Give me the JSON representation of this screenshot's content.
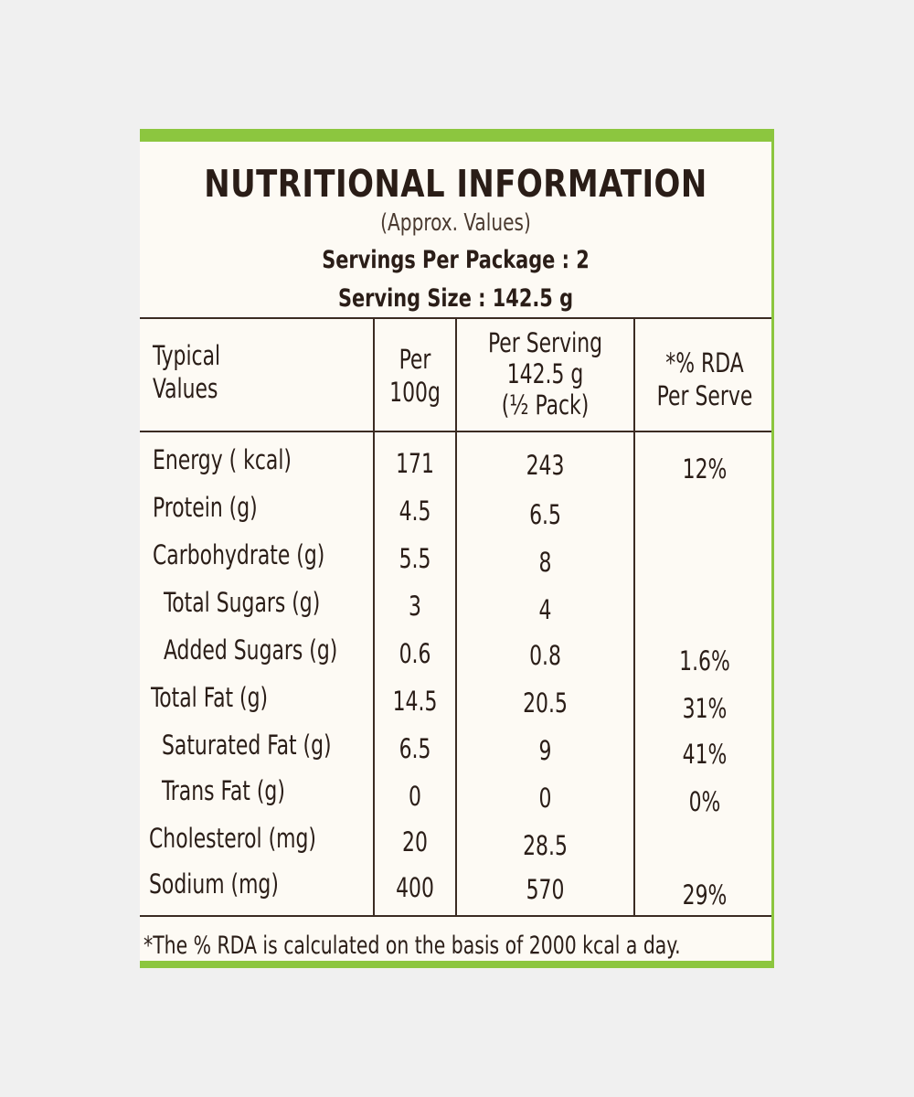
{
  "label": {
    "title": "NUTRITIONAL INFORMATION",
    "approx": "(Approx. Values)",
    "servings_per_package": "Servings Per Package : 2",
    "serving_size": "Serving Size : 142.5 g"
  },
  "table": {
    "headers": {
      "col1_line1": "Typical",
      "col1_line2": "Values",
      "col2_line1": "Per",
      "col2_line2": "100g",
      "col3_line1": "Per Serving",
      "col3_line2": "142.5 g",
      "col3_line3": "(½ Pack)",
      "col4_line1": "*% RDA",
      "col4_line2": "Per Serve"
    },
    "rows": [
      {
        "name": "Energy ( kcal)",
        "per100": "171",
        "serving": "243",
        "rda": "12%"
      },
      {
        "name": "Protein (g)",
        "per100": "4.5",
        "serving": "6.5",
        "rda": ""
      },
      {
        "name": "Carbohydrate (g)",
        "per100": "5.5",
        "serving": "8",
        "rda": ""
      },
      {
        "name": "Total Sugars (g)",
        "per100": "3",
        "serving": "4",
        "rda": ""
      },
      {
        "name": "Added Sugars (g)",
        "per100": "0.6",
        "serving": "0.8",
        "rda": "1.6%"
      },
      {
        "name": "Total Fat (g)",
        "per100": "14.5",
        "serving": "20.5",
        "rda": "31%"
      },
      {
        "name": "Saturated Fat (g)",
        "per100": "6.5",
        "serving": "9",
        "rda": "41%"
      },
      {
        "name": "Trans Fat (g)",
        "per100": "0",
        "serving": "0",
        "rda": "0%"
      },
      {
        "name": "Cholesterol (mg)",
        "per100": "20",
        "serving": "28.5",
        "rda": ""
      },
      {
        "name": "Sodium (mg)",
        "per100": "400",
        "serving": "570",
        "rda": "29%"
      }
    ]
  },
  "footnote": "*The % RDA is calculated on the basis of 2000 kcal a day.",
  "colors": {
    "background": "#f0f0f0",
    "label": "#fdfaf4",
    "border_green": "#8cc63f",
    "text": "#2a1d17"
  }
}
